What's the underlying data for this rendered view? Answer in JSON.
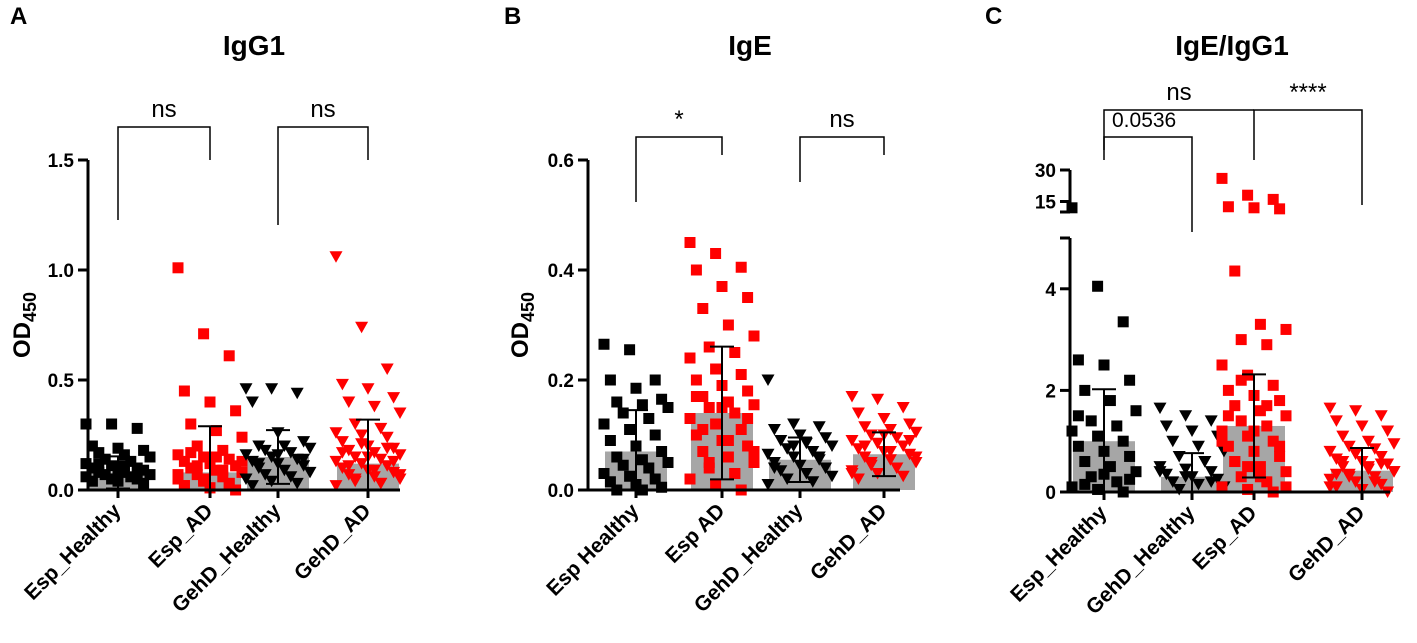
{
  "chart_data": [
    {
      "panel": "A",
      "type": "bar",
      "title": "IgG1",
      "ylabel": "OD",
      "ylabel_sub": "450",
      "ylim": [
        0,
        1.5
      ],
      "yticks": [
        "0.0",
        "0.5",
        "1.0",
        "1.5"
      ],
      "ytick_values": [
        0,
        0.5,
        1.0,
        1.5
      ],
      "categories": [
        "Esp_Healthy",
        "Esp_AD",
        "GehD_Healthy",
        "GehD_AD"
      ],
      "bar_values": [
        0.08,
        0.08,
        0.15,
        0.12
      ],
      "marker": [
        "square",
        "square",
        "triangle",
        "triangle"
      ],
      "colors": [
        "#000000",
        "#ff0000",
        "#000000",
        "#ff0000"
      ],
      "points": [
        [
          0.3,
          0.3,
          0.28,
          0.2,
          0.19,
          0.18,
          0.17,
          0.16,
          0.15,
          0.14,
          0.13,
          0.12,
          0.11,
          0.1,
          0.1,
          0.09,
          0.09,
          0.08,
          0.08,
          0.07,
          0.07,
          0.06,
          0.06,
          0.05,
          0.05,
          0.04,
          0.04,
          0.03,
          0.12,
          0.11
        ],
        [
          1.01,
          0.71,
          0.61,
          0.45,
          0.4,
          0.36,
          0.3,
          0.27,
          0.24,
          0.2,
          0.18,
          0.16,
          0.15,
          0.14,
          0.13,
          0.12,
          0.11,
          0.1,
          0.09,
          0.08,
          0.07,
          0.06,
          0.05,
          0.04,
          0.03,
          0.02,
          0.01,
          0.0,
          0.17,
          0.15,
          0.13,
          0.11,
          0.09,
          0.07,
          0.05,
          0.03,
          0.02,
          0.01
        ],
        [
          0.46,
          0.46,
          0.44,
          0.4,
          0.26,
          0.22,
          0.2,
          0.2,
          0.19,
          0.18,
          0.17,
          0.16,
          0.15,
          0.14,
          0.13,
          0.12,
          0.11,
          0.1,
          0.09,
          0.08,
          0.07,
          0.06,
          0.05,
          0.04,
          0.03,
          0.02,
          0.16,
          0.14,
          0.12
        ],
        [
          1.06,
          0.74,
          0.55,
          0.48,
          0.46,
          0.42,
          0.4,
          0.38,
          0.35,
          0.3,
          0.28,
          0.26,
          0.25,
          0.24,
          0.22,
          0.2,
          0.19,
          0.18,
          0.17,
          0.16,
          0.15,
          0.14,
          0.13,
          0.12,
          0.11,
          0.1,
          0.09,
          0.08,
          0.07,
          0.06,
          0.05,
          0.04,
          0.03,
          0.02,
          0.21,
          0.19,
          0.17,
          0.15,
          0.13,
          0.11,
          0.09,
          0.07,
          0.05,
          0.03
        ]
      ],
      "comparisons": [
        {
          "from": 0,
          "to": 1,
          "label": "ns"
        },
        {
          "from": 2,
          "to": 3,
          "label": "ns"
        }
      ]
    },
    {
      "panel": "B",
      "type": "bar",
      "title": "IgE",
      "ylabel": "OD",
      "ylabel_sub": "450",
      "ylim": [
        0,
        0.6
      ],
      "yticks": [
        "0.0",
        "0.2",
        "0.4",
        "0.6"
      ],
      "ytick_values": [
        0,
        0.2,
        0.4,
        0.6
      ],
      "categories": [
        "Esp Healthy",
        "Esp AD",
        "GehD_Healthy",
        "GehD_AD"
      ],
      "bar_values": [
        0.07,
        0.14,
        0.055,
        0.065
      ],
      "marker": [
        "square",
        "square",
        "triangle",
        "triangle"
      ],
      "colors": [
        "#000000",
        "#ff0000",
        "#000000",
        "#ff0000"
      ],
      "points": [
        [
          0.265,
          0.255,
          0.2,
          0.2,
          0.185,
          0.165,
          0.16,
          0.155,
          0.15,
          0.14,
          0.13,
          0.12,
          0.11,
          0.1,
          0.09,
          0.08,
          0.07,
          0.06,
          0.055,
          0.05,
          0.045,
          0.04,
          0.03,
          0.025,
          0.02,
          0.015,
          0.01,
          0.005,
          0.0,
          0.0
        ],
        [
          0.45,
          0.43,
          0.405,
          0.4,
          0.37,
          0.35,
          0.33,
          0.3,
          0.28,
          0.26,
          0.25,
          0.24,
          0.22,
          0.21,
          0.2,
          0.19,
          0.18,
          0.17,
          0.16,
          0.155,
          0.15,
          0.14,
          0.13,
          0.12,
          0.11,
          0.1,
          0.09,
          0.08,
          0.07,
          0.06,
          0.05,
          0.04,
          0.03,
          0.02,
          0.01,
          0.0,
          0.17,
          0.15,
          0.13,
          0.11,
          0.09,
          0.07,
          0.05,
          0.03
        ],
        [
          0.2,
          0.12,
          0.115,
          0.11,
          0.1,
          0.095,
          0.09,
          0.085,
          0.08,
          0.075,
          0.07,
          0.065,
          0.06,
          0.055,
          0.05,
          0.045,
          0.04,
          0.035,
          0.03,
          0.025,
          0.02,
          0.015,
          0.01,
          0.08,
          0.06,
          0.04
        ],
        [
          0.17,
          0.165,
          0.15,
          0.14,
          0.13,
          0.12,
          0.115,
          0.11,
          0.105,
          0.1,
          0.095,
          0.09,
          0.085,
          0.08,
          0.075,
          0.07,
          0.065,
          0.06,
          0.055,
          0.05,
          0.045,
          0.04,
          0.035,
          0.03,
          0.025,
          0.02,
          0.1,
          0.09,
          0.08,
          0.07,
          0.06,
          0.05,
          0.04,
          0.03
        ]
      ],
      "comparisons": [
        {
          "from": 0,
          "to": 1,
          "label": "*"
        },
        {
          "from": 2,
          "to": 3,
          "label": "ns"
        }
      ]
    },
    {
      "panel": "C",
      "type": "bar",
      "title": "IgE/IgG1",
      "ylabel": "",
      "ylim": [
        0,
        5
      ],
      "yticks": [
        "0",
        "2",
        "4"
      ],
      "ytick_values": [
        0,
        2,
        4
      ],
      "upper_segment": {
        "ylim": [
          10,
          30
        ],
        "yticks": [
          "15",
          "30"
        ],
        "ytick_values": [
          15,
          30
        ]
      },
      "categories": [
        "Esp_Healthy",
        "GehD_Healthy",
        "Esp_AD",
        "GehD_AD"
      ],
      "bar_values": [
        1.0,
        0.3,
        1.3,
        0.42
      ],
      "marker": [
        "square",
        "triangle",
        "square",
        "triangle"
      ],
      "colors": [
        "#000000",
        "#000000",
        "#ff0000",
        "#ff0000"
      ],
      "points": [
        [
          12.0,
          4.05,
          3.35,
          2.6,
          2.5,
          2.2,
          2.0,
          1.8,
          1.6,
          1.4,
          1.3,
          1.2,
          1.1,
          1.0,
          0.9,
          0.8,
          0.7,
          0.6,
          0.5,
          0.4,
          0.3,
          0.2,
          0.1,
          0.05,
          0.0,
          1.5,
          0.35,
          0.25,
          0.15
        ],
        [
          1.65,
          1.5,
          1.4,
          1.3,
          1.2,
          1.1,
          1.0,
          0.9,
          0.8,
          0.7,
          0.6,
          0.5,
          0.45,
          0.4,
          0.35,
          0.3,
          0.25,
          0.2,
          0.15,
          0.1,
          0.05,
          0.6,
          0.4,
          0.3,
          0.2
        ],
        [
          26.0,
          18.0,
          16.0,
          12.5,
          12.0,
          11.5,
          4.35,
          3.3,
          3.2,
          3.0,
          2.9,
          2.5,
          2.3,
          2.1,
          2.0,
          1.9,
          1.8,
          1.7,
          1.6,
          1.5,
          1.4,
          1.3,
          1.2,
          1.1,
          1.0,
          0.9,
          0.8,
          0.7,
          0.6,
          0.5,
          0.4,
          0.3,
          0.2,
          0.1,
          0.05,
          0.0,
          1.5,
          1.2,
          0.9,
          0.6,
          0.3,
          0.1,
          2.2,
          1.7,
          1.0,
          0.5
        ],
        [
          1.65,
          1.6,
          1.5,
          1.4,
          1.3,
          1.2,
          1.1,
          1.0,
          0.95,
          0.9,
          0.85,
          0.8,
          0.75,
          0.7,
          0.65,
          0.6,
          0.55,
          0.5,
          0.45,
          0.4,
          0.35,
          0.3,
          0.25,
          0.2,
          0.15,
          0.1,
          0.05,
          0.0,
          0.6,
          0.5,
          0.4,
          0.3,
          0.2,
          0.1,
          0.75,
          0.55,
          0.35
        ]
      ],
      "comparisons": [
        {
          "from": 0,
          "to": 2,
          "label": "ns"
        },
        {
          "from": 0,
          "to": 1,
          "label": "0.0536"
        },
        {
          "from": 2,
          "to": 3,
          "label": "****"
        }
      ]
    }
  ]
}
